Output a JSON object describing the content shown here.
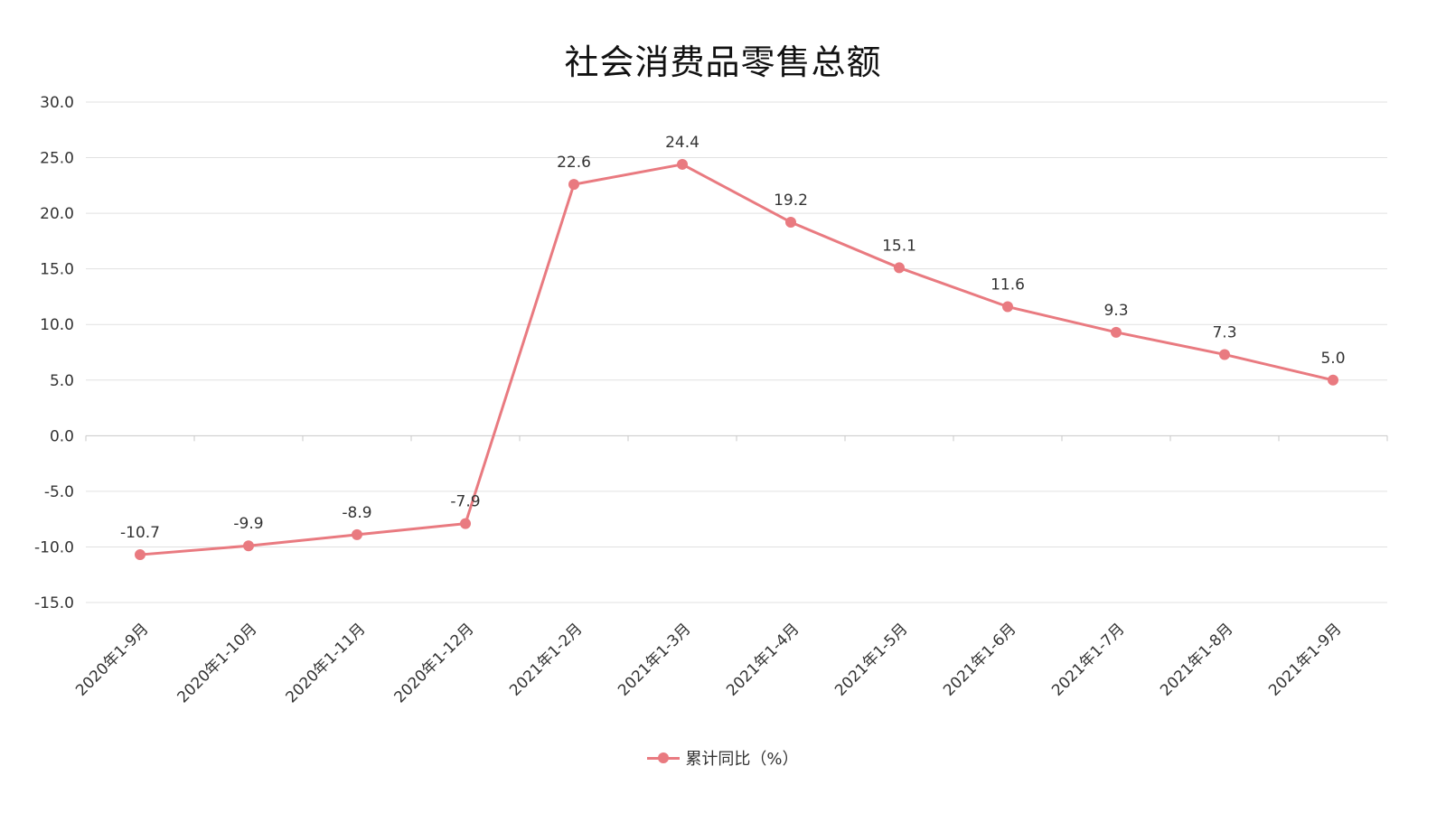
{
  "chart_data": {
    "type": "line",
    "title": "社会消费品零售总额",
    "xlabel": "",
    "ylabel": "",
    "categories": [
      "2020年1-9月",
      "2020年1-10月",
      "2020年1-11月",
      "2020年1-12月",
      "2021年1-2月",
      "2021年1-3月",
      "2021年1-4月",
      "2021年1-5月",
      "2021年1-6月",
      "2021年1-7月",
      "2021年1-8月",
      "2021年1-9月"
    ],
    "series": [
      {
        "name": "累计同比（%）",
        "color": "#e97a80",
        "values": [
          -10.7,
          -9.9,
          -8.9,
          -7.9,
          22.6,
          24.4,
          19.2,
          15.1,
          11.6,
          9.3,
          7.3,
          5.0
        ],
        "value_labels": [
          "-10.7",
          "-9.9",
          "-8.9",
          "-7.9",
          "22.6",
          "24.4",
          "19.2",
          "15.1",
          "11.6",
          "9.3",
          "7.3",
          "5.0"
        ]
      }
    ],
    "ylim": [
      -15,
      30
    ],
    "yticks": [
      30,
      25,
      20,
      15,
      10,
      5,
      0,
      -5,
      -10,
      -15
    ],
    "ytick_labels": [
      "30.0",
      "25.0",
      "20.0",
      "15.0",
      "10.0",
      "5.0",
      "0.0",
      "-5.0",
      "-10.0",
      "-15.0"
    ],
    "grid": true,
    "legend": "bottom-center"
  }
}
